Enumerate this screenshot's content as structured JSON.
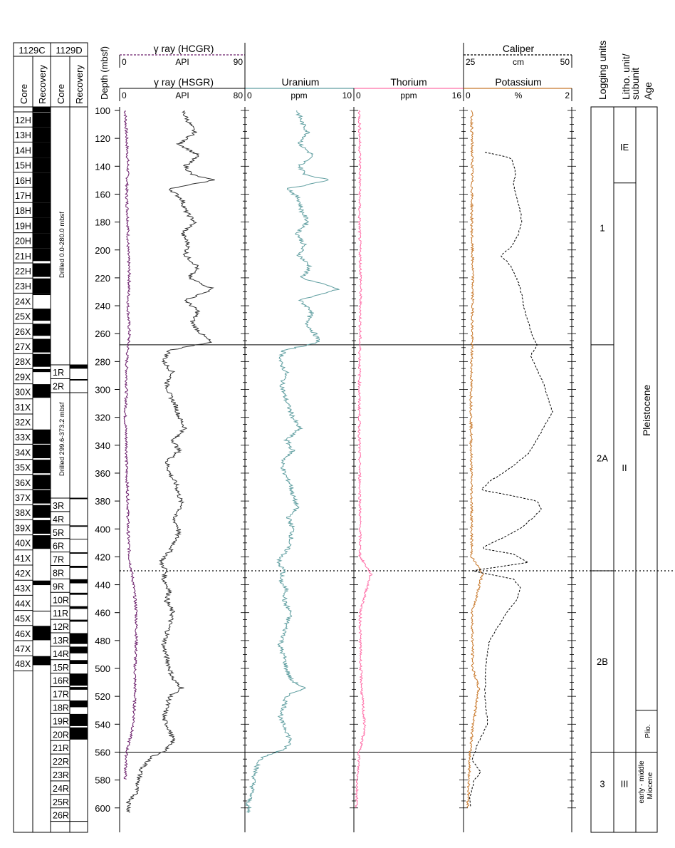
{
  "holes": {
    "c": {
      "label": "1129C",
      "core_header": "Core",
      "recovery_header": "Recovery",
      "cores": [
        "12H",
        "13H",
        "14H",
        "15H",
        "16H",
        "17H",
        "18H",
        "19H",
        "20H",
        "21H",
        "22H",
        "23H",
        "24X",
        "25X",
        "26X",
        "27X",
        "28X",
        "29X",
        "30X",
        "31X",
        "32X",
        "33X",
        "34X",
        "35X",
        "36X",
        "37X",
        "38X",
        "39X",
        "40X",
        "41X",
        "42X",
        "43X",
        "44X",
        "45X",
        "46X",
        "47X",
        "48X"
      ],
      "drilled_note": ""
    },
    "d": {
      "label": "1129D",
      "core_header": "Core",
      "recovery_header": "Recovery",
      "drilled_note_1": "Drilled 0.0-280.0 mbsf",
      "drilled_note_2": "Drilled 299.6-373.2 mbsf",
      "cores_a": [
        "1R",
        "2R"
      ],
      "cores_b": [
        "3R",
        "4R",
        "5R",
        "6R",
        "7R",
        "8R",
        "9R",
        "10R",
        "11R",
        "12R",
        "13R",
        "14R",
        "15R",
        "16R",
        "17R",
        "18R",
        "19R",
        "20R",
        "21R",
        "22R",
        "23R",
        "24R",
        "25R",
        "26R"
      ]
    }
  },
  "depth_axis": {
    "label": "Depth (mbsf)",
    "ticks": [
      "100",
      "120",
      "140",
      "160",
      "180",
      "200",
      "220",
      "240",
      "260",
      "280",
      "300",
      "320",
      "340",
      "360",
      "380",
      "400",
      "420",
      "440",
      "460",
      "480",
      "500",
      "520",
      "540",
      "560",
      "580",
      "600"
    ]
  },
  "tracks": {
    "hcgr": {
      "title": "γ ray (HCGR)",
      "unit": "API",
      "min": "0",
      "max": "90",
      "color": "#6b1f6b"
    },
    "hsgr": {
      "title": "γ ray (HSGR)",
      "unit": "API",
      "min": "0",
      "max": "80",
      "color": "#333333"
    },
    "uranium": {
      "title": "Uranium",
      "unit": "ppm",
      "min": "0",
      "max": "10",
      "color": "#5f9ea0"
    },
    "thorium": {
      "title": "Thorium",
      "unit": "ppm",
      "min": "0",
      "max": "16",
      "color": "#ff6fa8"
    },
    "caliper": {
      "title": "Caliper",
      "unit": "cm",
      "min": "25",
      "max": "50",
      "color": "#000000"
    },
    "potassium": {
      "title": "Potassium",
      "unit": "%",
      "min": "0",
      "max": "2",
      "color": "#c8782a"
    }
  },
  "right_headers": {
    "logging_units": "Logging units",
    "litho": "Litho. unit/ subunit",
    "age": "Age"
  },
  "logging_units": [
    {
      "label": "1",
      "top": 100,
      "bottom": 268
    },
    {
      "label": "2A",
      "top": 268,
      "bottom": 430
    },
    {
      "label": "2B",
      "top": 430,
      "bottom": 560
    },
    {
      "label": "3",
      "top": 560,
      "bottom": 605
    }
  ],
  "litho_units": [
    {
      "label": "IE",
      "top": 100,
      "bottom": 152
    },
    {
      "label": "II",
      "top": 152,
      "bottom": 560
    },
    {
      "label": "III",
      "top": 560,
      "bottom": 605
    }
  ],
  "ages": [
    {
      "label": "Pleistocene",
      "top": 100,
      "bottom": 530
    },
    {
      "label": "Plio.",
      "top": 530,
      "bottom": 560
    },
    {
      "label": "early - middle",
      "label2": "Miocene",
      "top": 560,
      "bottom": 605
    }
  ],
  "chart_data": {
    "type": "line",
    "title": "",
    "ylabel": "Depth (mbsf)",
    "ylim": [
      100,
      605
    ],
    "y_inverted": true,
    "boundaries_solid": [
      268,
      560
    ],
    "boundaries_dotted": [
      430
    ],
    "series": [
      {
        "name": "γ ray (HCGR)",
        "unit": "API",
        "xlim": [
          0,
          90
        ],
        "depth": [
          100,
          120,
          140,
          160,
          180,
          200,
          220,
          240,
          260,
          280,
          300,
          320,
          340,
          360,
          380,
          400,
          420,
          440,
          460,
          480,
          500,
          520,
          540,
          560,
          580
        ],
        "values": [
          4,
          5,
          6,
          5,
          6,
          6,
          7,
          6,
          7,
          5,
          5,
          4,
          5,
          5,
          6,
          6,
          7,
          10,
          12,
          12,
          11,
          11,
          10,
          5,
          4
        ]
      },
      {
        "name": "γ ray (HSGR)",
        "unit": "API",
        "xlim": [
          0,
          80
        ],
        "depth": [
          100,
          108,
          116,
          124,
          132,
          140,
          146,
          150,
          156,
          164,
          172,
          180,
          188,
          196,
          204,
          212,
          220,
          228,
          236,
          244,
          252,
          260,
          266,
          272,
          280,
          288,
          296,
          304,
          312,
          320,
          328,
          336,
          344,
          352,
          360,
          368,
          376,
          384,
          392,
          400,
          408,
          416,
          424,
          430,
          436,
          444,
          452,
          460,
          468,
          476,
          484,
          492,
          500,
          508,
          514,
          520,
          528,
          536,
          544,
          552,
          558,
          564,
          572,
          580,
          590,
          596,
          604
        ],
        "values": [
          40,
          44,
          48,
          38,
          50,
          42,
          46,
          60,
          32,
          40,
          42,
          48,
          40,
          44,
          42,
          50,
          44,
          60,
          42,
          50,
          46,
          52,
          58,
          32,
          28,
          34,
          30,
          32,
          36,
          38,
          42,
          34,
          38,
          30,
          32,
          36,
          38,
          40,
          34,
          38,
          36,
          32,
          26,
          30,
          28,
          32,
          30,
          34,
          32,
          30,
          28,
          30,
          32,
          34,
          40,
          32,
          30,
          28,
          32,
          34,
          30,
          20,
          14,
          12,
          10,
          6,
          6
        ]
      },
      {
        "name": "Uranium",
        "unit": "ppm",
        "xlim": [
          0,
          10
        ],
        "depth": [
          100,
          108,
          116,
          124,
          132,
          140,
          146,
          150,
          156,
          164,
          172,
          180,
          188,
          196,
          204,
          212,
          220,
          228,
          236,
          244,
          252,
          260,
          266,
          272,
          280,
          288,
          296,
          304,
          312,
          320,
          328,
          336,
          344,
          352,
          360,
          368,
          376,
          384,
          392,
          400,
          408,
          416,
          424,
          430,
          436,
          444,
          452,
          460,
          468,
          476,
          484,
          492,
          500,
          508,
          514,
          520,
          528,
          536,
          544,
          552,
          558,
          564,
          572,
          580,
          590,
          596,
          604
        ],
        "values": [
          4.8,
          5.2,
          5.8,
          5,
          6.2,
          5,
          5.6,
          7.8,
          4,
          5,
          5.2,
          5.8,
          4.8,
          5.4,
          5,
          6,
          5.2,
          8.6,
          5,
          6.2,
          5.6,
          6.4,
          6.8,
          3.6,
          3.2,
          3.8,
          3.4,
          3.6,
          4,
          4.4,
          5,
          3.8,
          4.4,
          3.4,
          3.6,
          4.2,
          4.4,
          4.8,
          4,
          4.4,
          4.2,
          3.8,
          3,
          3.6,
          3.2,
          3.8,
          3.6,
          4.2,
          3.8,
          3.6,
          3.2,
          3.6,
          3.8,
          4.2,
          5.4,
          3.8,
          3.6,
          3.2,
          3.8,
          4.2,
          3.6,
          1.6,
          1,
          0.8,
          0.6,
          0.3,
          0.3
        ]
      },
      {
        "name": "Thorium",
        "unit": "ppm",
        "xlim": [
          0,
          16
        ],
        "depth": [
          100,
          140,
          180,
          220,
          260,
          300,
          340,
          380,
          420,
          432,
          460,
          500,
          520,
          543,
          560,
          580,
          600
        ],
        "values": [
          0.8,
          0.9,
          0.8,
          1,
          0.9,
          0.8,
          0.8,
          0.9,
          0.9,
          2.5,
          0.9,
          1,
          1.2,
          1.6,
          0.8,
          0.5,
          0.4
        ]
      },
      {
        "name": "Potassium",
        "unit": "%",
        "xlim": [
          0,
          2
        ],
        "depth": [
          100,
          140,
          180,
          220,
          260,
          300,
          340,
          380,
          420,
          432,
          460,
          500,
          514,
          540,
          560,
          580,
          600
        ],
        "values": [
          0.15,
          0.16,
          0.15,
          0.17,
          0.16,
          0.14,
          0.14,
          0.15,
          0.15,
          0.35,
          0.16,
          0.17,
          0.28,
          0.18,
          0.12,
          0.1,
          0.08
        ]
      },
      {
        "name": "Caliper",
        "unit": "cm",
        "xlim": [
          25,
          50
        ],
        "depth": [
          130,
          134,
          138,
          146,
          152,
          160,
          170,
          180,
          190,
          198,
          204,
          208,
          212,
          222,
          232,
          242,
          252,
          262,
          268,
          276,
          286,
          296,
          306,
          316,
          322,
          330,
          346,
          356,
          366,
          372,
          376,
          380,
          386,
          392,
          400,
          408,
          414,
          418,
          424,
          430,
          436,
          442,
          450,
          460,
          480,
          500,
          520,
          540,
          556,
          566,
          574,
          580,
          586,
          592,
          600
        ],
        "values": [
          30,
          36,
          36.5,
          37,
          36.5,
          37,
          38,
          38.5,
          37.5,
          36,
          33.5,
          35,
          36,
          37.5,
          38.5,
          39,
          40,
          41,
          42,
          40.5,
          42,
          43.5,
          44.5,
          45.5,
          44.5,
          43,
          40,
          36,
          31,
          29,
          36,
          42,
          43,
          41,
          38,
          33,
          29,
          36.5,
          40,
          27,
          36.5,
          38,
          37.5,
          35,
          31,
          30,
          30,
          30.5,
          28,
          27,
          29,
          27.5,
          27,
          26.5,
          26.5
        ]
      }
    ]
  }
}
